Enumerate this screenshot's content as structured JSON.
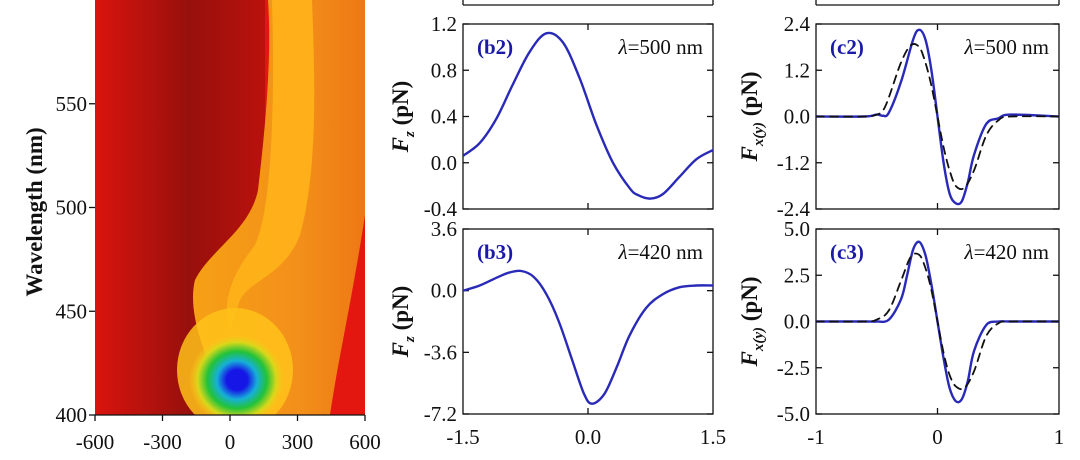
{
  "chart_data": [
    {
      "id": "a-heatmap",
      "type": "heatmap",
      "ylabel": "Wavelength (nm)",
      "xlim": [
        -600,
        600
      ],
      "ylim": [
        400,
        600
      ],
      "x_ticks": [
        "-600",
        "-300",
        "0",
        "300",
        "600"
      ],
      "x_tick_values": [
        -600,
        -300,
        0,
        300,
        600
      ],
      "y_ticks": [
        "400",
        "450",
        "500",
        "550"
      ],
      "y_tick_values": [
        400,
        450,
        500,
        550
      ],
      "colors": {
        "dark_red": "#7a0c0c",
        "red": "#e3170f",
        "orange": "#f08a12",
        "yellow": "#ffc21a",
        "green": "#22c23a",
        "cyan": "#17b0d8",
        "blue": "#1616e6"
      },
      "hotspot": {
        "x": 0,
        "wavelength": 415
      }
    },
    {
      "id": "b2",
      "type": "line",
      "tag": "(b2)",
      "lambda": "=500 nm",
      "ylabel_main": "F",
      "ylabel_sub": "z",
      "ylabel_unit": " (pN)",
      "xlim": [
        -1.5,
        1.5
      ],
      "ylim": [
        -0.4,
        1.2
      ],
      "y_ticks": [
        "1.2",
        "0.8",
        "0.4",
        "0.0",
        "-0.4"
      ],
      "y_tick_values": [
        1.2,
        0.8,
        0.4,
        0.0,
        -0.4
      ],
      "series": [
        {
          "name": "Fz",
          "style": "solid",
          "color": "#2a2ab8",
          "x": [
            -1.5,
            -1.3,
            -1.1,
            -0.9,
            -0.7,
            -0.5,
            -0.3,
            -0.1,
            0.1,
            0.3,
            0.5,
            0.6,
            0.75,
            0.9,
            1.1,
            1.3,
            1.5
          ],
          "y": [
            0.06,
            0.17,
            0.38,
            0.68,
            0.96,
            1.12,
            1.04,
            0.73,
            0.33,
            0.0,
            -0.22,
            -0.28,
            -0.31,
            -0.27,
            -0.12,
            0.03,
            0.11
          ]
        }
      ]
    },
    {
      "id": "b3",
      "type": "line",
      "tag": "(b3)",
      "lambda": "=420 nm",
      "ylabel_main": "F",
      "ylabel_sub": "z",
      "ylabel_unit": " (pN)",
      "xlabel": "",
      "xlim": [
        -1.5,
        1.5
      ],
      "ylim": [
        -7.2,
        3.6
      ],
      "x_ticks": [
        "-1.5",
        "0.0",
        "1.5"
      ],
      "x_tick_values": [
        -1.5,
        0.0,
        1.5
      ],
      "y_ticks": [
        "3.6",
        "0.0",
        "-3.6",
        "-7.2"
      ],
      "y_tick_values": [
        3.6,
        0.0,
        -3.6,
        -7.2
      ],
      "series": [
        {
          "name": "Fz",
          "style": "solid",
          "color": "#2a2ab8",
          "x": [
            -1.5,
            -1.3,
            -1.1,
            -0.95,
            -0.8,
            -0.65,
            -0.5,
            -0.35,
            -0.2,
            -0.05,
            0.05,
            0.2,
            0.35,
            0.5,
            0.7,
            0.9,
            1.1,
            1.3,
            1.5
          ],
          "y": [
            0.0,
            0.3,
            0.75,
            1.05,
            1.15,
            0.8,
            -0.2,
            -1.8,
            -3.9,
            -6.0,
            -6.6,
            -6.0,
            -4.4,
            -2.6,
            -1.0,
            -0.2,
            0.2,
            0.3,
            0.3
          ]
        }
      ]
    },
    {
      "id": "c2",
      "type": "line",
      "tag": "(c2)",
      "lambda": "=500 nm",
      "ylabel_main": "F",
      "ylabel_sub": "x(y)",
      "ylabel_unit": " (pN)",
      "xlim": [
        -1,
        1
      ],
      "ylim": [
        -2.4,
        2.4
      ],
      "y_ticks": [
        "2.4",
        "1.2",
        "0.0",
        "-1.2",
        "-2.4"
      ],
      "y_tick_values": [
        2.4,
        1.2,
        0.0,
        -1.2,
        -2.4
      ],
      "series": [
        {
          "name": "Fx",
          "style": "solid",
          "color": "#2a2ab8",
          "x": [
            -1,
            -0.6,
            -0.5,
            -0.45,
            -0.4,
            -0.3,
            -0.2,
            -0.15,
            -0.1,
            -0.05,
            0.0,
            0.05,
            0.1,
            0.15,
            0.2,
            0.25,
            0.3,
            0.4,
            0.5,
            0.6,
            1
          ],
          "y": [
            0.0,
            0.0,
            0.05,
            0.02,
            0.1,
            0.9,
            2.0,
            2.25,
            2.0,
            1.2,
            0.0,
            -1.2,
            -2.0,
            -2.25,
            -2.2,
            -1.7,
            -1.0,
            -0.2,
            -0.05,
            0.05,
            0.0
          ]
        },
        {
          "name": "Fy",
          "style": "dashed",
          "color": "#111111",
          "x": [
            -1,
            -0.6,
            -0.5,
            -0.45,
            -0.4,
            -0.3,
            -0.22,
            -0.15,
            -0.1,
            -0.05,
            0.0,
            0.05,
            0.1,
            0.15,
            0.22,
            0.3,
            0.4,
            0.5,
            0.6,
            1
          ],
          "y": [
            0.0,
            0.0,
            0.05,
            0.15,
            0.5,
            1.4,
            1.85,
            1.8,
            1.4,
            0.8,
            0.0,
            -0.8,
            -1.4,
            -1.8,
            -1.85,
            -1.4,
            -0.5,
            -0.1,
            0.0,
            0.0
          ]
        }
      ]
    },
    {
      "id": "c3",
      "type": "line",
      "tag": "(c3)",
      "lambda": "=420 nm",
      "ylabel_main": "F",
      "ylabel_sub": "x(y)",
      "ylabel_unit": " (pN)",
      "xlim": [
        -1,
        1
      ],
      "ylim": [
        -5.0,
        5.0
      ],
      "x_ticks": [
        "-1",
        "0",
        "1"
      ],
      "x_tick_values": [
        -1,
        0,
        1
      ],
      "y_ticks": [
        "5.0",
        "2.5",
        "0.0",
        "-2.5",
        "-5.0"
      ],
      "y_tick_values": [
        5.0,
        2.5,
        0.0,
        -2.5,
        -5.0
      ],
      "series": [
        {
          "name": "Fx",
          "style": "solid",
          "color": "#2a2ab8",
          "x": [
            -1,
            -0.6,
            -0.5,
            -0.4,
            -0.3,
            -0.25,
            -0.2,
            -0.15,
            -0.1,
            -0.05,
            0.0,
            0.05,
            0.1,
            0.15,
            0.2,
            0.25,
            0.3,
            0.4,
            0.5,
            0.6,
            1
          ],
          "y": [
            0.0,
            0.0,
            0.0,
            0.1,
            1.2,
            2.5,
            3.9,
            4.3,
            3.6,
            2.0,
            0.0,
            -2.0,
            -3.6,
            -4.3,
            -4.2,
            -3.2,
            -1.6,
            -0.2,
            0.0,
            0.0,
            0.0
          ]
        },
        {
          "name": "Fy",
          "style": "dashed",
          "color": "#111111",
          "x": [
            -1,
            -0.6,
            -0.5,
            -0.4,
            -0.3,
            -0.22,
            -0.15,
            -0.1,
            -0.05,
            0.0,
            0.05,
            0.1,
            0.15,
            0.22,
            0.3,
            0.4,
            0.5,
            0.6,
            1
          ],
          "y": [
            0.0,
            0.0,
            0.1,
            0.6,
            2.2,
            3.5,
            3.6,
            2.9,
            1.7,
            0.0,
            -1.7,
            -2.9,
            -3.5,
            -3.6,
            -2.7,
            -0.8,
            -0.1,
            0.0,
            0.0
          ]
        }
      ]
    }
  ]
}
